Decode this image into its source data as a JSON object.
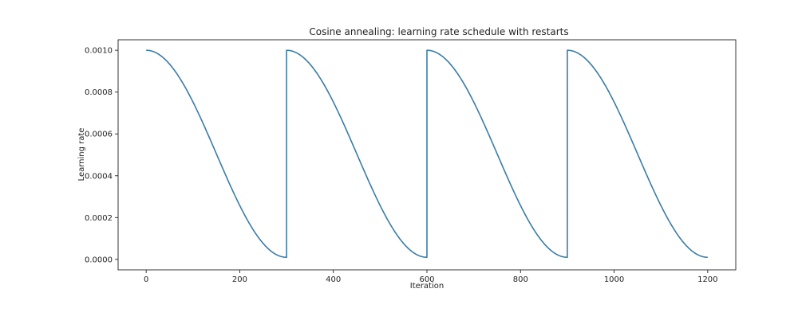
{
  "chart_data": {
    "type": "line",
    "title": "Cosine annealing: learning rate schedule with restarts",
    "xlabel": "Iteration",
    "ylabel": "Learning rate",
    "xlim": [
      -60,
      1260
    ],
    "ylim": [
      -5e-05,
      0.00105
    ],
    "xticks": [
      0,
      200,
      400,
      600,
      800,
      1000,
      1200
    ],
    "yticks": [
      0.0,
      0.0002,
      0.0004,
      0.0006,
      0.0008,
      0.001
    ],
    "ytick_labels": [
      "0.0000",
      "0.0002",
      "0.0004",
      "0.0006",
      "0.0008",
      "0.0010"
    ],
    "grid": false,
    "series": [
      {
        "name": "learning rate",
        "color": "#3a7ca5",
        "schedule": {
          "kind": "cosine_annealing_warm_restarts",
          "lr_max": 0.001,
          "lr_min": 1e-05,
          "cycle_length": 300,
          "total_iterations": 1200
        }
      }
    ]
  }
}
